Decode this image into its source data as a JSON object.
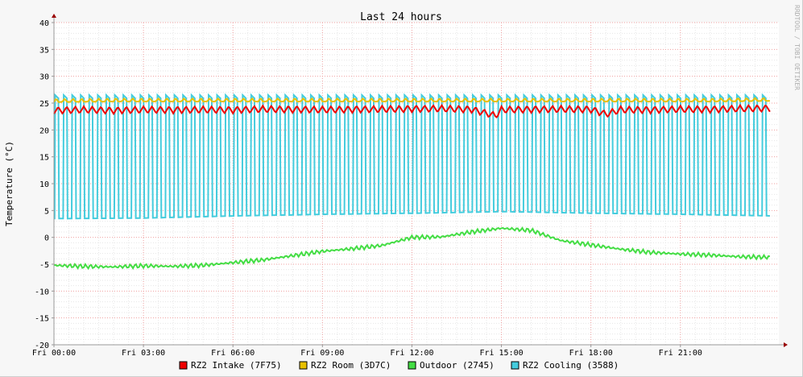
{
  "chart_data": {
    "type": "line",
    "title": "Last 24 hours",
    "ylabel": "Temperature (°C)",
    "watermark": "RRDTOOL / TOBI OETIKER",
    "ylim": [
      -20,
      40
    ],
    "y_ticks": [
      -20,
      -15,
      -10,
      -5,
      0,
      5,
      10,
      15,
      20,
      25,
      30,
      35,
      40
    ],
    "y_tick_labels": [
      "-20",
      "-15",
      "-10",
      "-5",
      "0",
      "5",
      "10",
      "15",
      "20",
      "25",
      "30",
      "35",
      "40"
    ],
    "x_range_hours": [
      0,
      24.3
    ],
    "x_ticks_hours": [
      0,
      3,
      6,
      9,
      12,
      15,
      18,
      21
    ],
    "x_tick_labels": [
      "Fri 00:00",
      "Fri 03:00",
      "Fri 06:00",
      "Fri 09:00",
      "Fri 12:00",
      "Fri 15:00",
      "Fri 18:00",
      "Fri 21:00"
    ],
    "grid": true,
    "legend_position": "bottom",
    "x_unit": "hours since Fri 00:00",
    "series": [
      {
        "name": "RZ2 Intake (7F75)",
        "color": "#ee0000",
        "x": [
          0.0,
          1.0,
          2.0,
          3.0,
          4.0,
          5.0,
          6.0,
          7.0,
          8.0,
          9.0,
          10.0,
          11.0,
          12.0,
          13.0,
          14.0,
          14.8,
          15.0,
          16.0,
          17.0,
          18.0,
          18.5,
          19.0,
          20.0,
          21.0,
          22.0,
          23.0,
          24.0
        ],
        "values": [
          23.5,
          23.6,
          23.5,
          23.6,
          23.6,
          23.6,
          23.6,
          23.7,
          23.7,
          23.6,
          23.7,
          23.7,
          23.8,
          23.8,
          23.7,
          22.5,
          23.6,
          23.7,
          23.7,
          23.7,
          22.8,
          23.6,
          23.6,
          23.7,
          23.7,
          23.8,
          23.9
        ]
      },
      {
        "name": "RZ2 Room (3D7C)",
        "color": "#e8c000",
        "x": [
          0.0,
          2.0,
          4.0,
          6.0,
          8.0,
          10.0,
          12.0,
          14.0,
          16.0,
          18.0,
          20.0,
          22.0,
          24.0
        ],
        "values": [
          25.2,
          25.3,
          25.3,
          25.3,
          25.3,
          25.3,
          25.3,
          25.3,
          25.3,
          25.3,
          25.3,
          25.3,
          25.4
        ]
      },
      {
        "name": "Outdoor (2745)",
        "color": "#44dd44",
        "x": [
          0.0,
          1.0,
          2.0,
          3.0,
          4.0,
          5.0,
          6.0,
          7.0,
          8.0,
          9.0,
          10.0,
          11.0,
          12.0,
          13.0,
          14.0,
          15.0,
          16.0,
          17.0,
          18.0,
          19.0,
          20.0,
          21.0,
          22.0,
          23.0,
          24.0
        ],
        "values": [
          -5.2,
          -5.4,
          -5.5,
          -5.3,
          -5.4,
          -5.2,
          -4.7,
          -4.2,
          -3.4,
          -2.6,
          -2.1,
          -1.5,
          0.0,
          0.1,
          1.0,
          1.7,
          1.3,
          -0.6,
          -1.4,
          -2.2,
          -2.8,
          -3.1,
          -3.3,
          -3.6,
          -3.7
        ]
      },
      {
        "name": "RZ2 Cooling (3588)",
        "color": "#44ccdd",
        "high_level": 26.5,
        "cycles_per_24h": 84,
        "x": [
          0.0,
          3.0,
          6.0,
          9.0,
          12.0,
          15.0,
          18.0,
          21.0,
          24.0
        ],
        "low_values": [
          3.5,
          3.6,
          4.0,
          4.3,
          4.5,
          4.8,
          4.5,
          4.3,
          4.0
        ]
      }
    ],
    "legend": [
      {
        "label": "RZ2 Intake (7F75)",
        "color": "#ee0000"
      },
      {
        "label": "RZ2 Room (3D7C)",
        "color": "#e8c000"
      },
      {
        "label": "Outdoor (2745)",
        "color": "#44dd44"
      },
      {
        "label": "RZ2 Cooling (3588)",
        "color": "#44ccdd"
      }
    ]
  }
}
